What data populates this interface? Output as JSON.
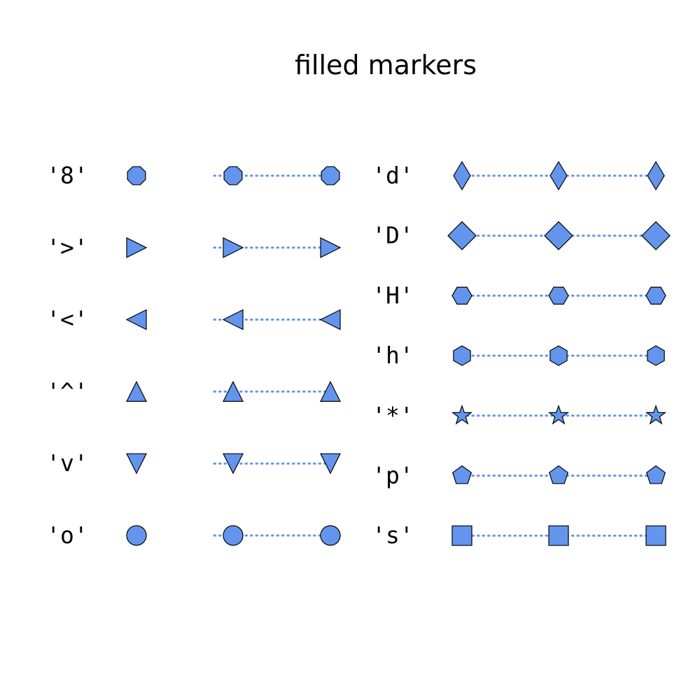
{
  "chart_data": {
    "type": "scatter",
    "title": "filled markers",
    "xlabel": "",
    "ylabel": "",
    "grid": false,
    "axes_visible": false,
    "marker_color": "#6495ED",
    "marker_edge_color": "#000000",
    "line_style": "dotted",
    "panels": [
      {
        "name": "left",
        "rows": [
          {
            "label": "'8'",
            "marker": "octagon",
            "x": [
              0,
              1,
              2
            ]
          },
          {
            "label": "'>'",
            "marker": "triangle_right",
            "x": [
              0,
              1,
              2
            ]
          },
          {
            "label": "'<'",
            "marker": "triangle_left",
            "x": [
              0,
              1,
              2
            ]
          },
          {
            "label": "'^'",
            "marker": "triangle_up",
            "x": [
              0,
              1,
              2
            ]
          },
          {
            "label": "'v'",
            "marker": "triangle_down",
            "x": [
              0,
              1,
              2
            ]
          },
          {
            "label": "'o'",
            "marker": "circle",
            "x": [
              0,
              1,
              2
            ]
          }
        ]
      },
      {
        "name": "right",
        "rows": [
          {
            "label": "'d'",
            "marker": "thin_diamond",
            "x": [
              0,
              1,
              2
            ]
          },
          {
            "label": "'D'",
            "marker": "diamond",
            "x": [
              0,
              1,
              2
            ]
          },
          {
            "label": "'H'",
            "marker": "hexagon2",
            "x": [
              0,
              1,
              2
            ]
          },
          {
            "label": "'h'",
            "marker": "hexagon1",
            "x": [
              0,
              1,
              2
            ]
          },
          {
            "label": "'*'",
            "marker": "star",
            "x": [
              0,
              1,
              2
            ]
          },
          {
            "label": "'p'",
            "marker": "pentagon",
            "x": [
              0,
              1,
              2
            ]
          },
          {
            "label": "'s'",
            "marker": "square",
            "x": [
              0,
              1,
              2
            ]
          }
        ]
      }
    ]
  }
}
